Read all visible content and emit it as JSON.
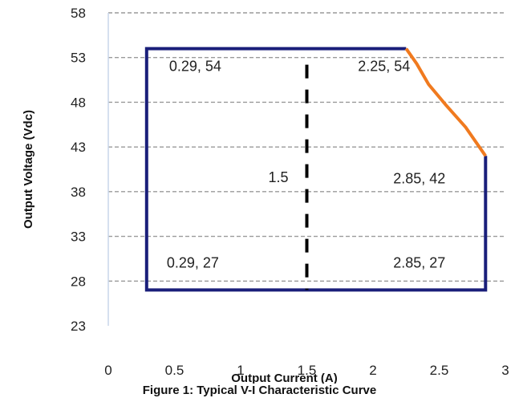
{
  "chart_data": {
    "type": "line",
    "xlabel": "Output Current (A)",
    "ylabel": "Output Voltage (Vdc)",
    "xlim": [
      0,
      3
    ],
    "ylim": [
      23,
      58
    ],
    "x_ticks": [
      "0",
      "0.5",
      "1",
      "1.5",
      "2",
      "2.5",
      "3"
    ],
    "y_ticks": [
      "23",
      "28",
      "33",
      "38",
      "43",
      "48",
      "53",
      "58"
    ],
    "grid": "horizontal-dashed",
    "series": [
      {
        "points": [
          [
            2.25,
            54
          ],
          [
            0.29,
            54
          ],
          [
            0.29,
            27
          ],
          [
            2.85,
            27
          ],
          [
            2.85,
            42
          ]
        ],
        "color": "#1a1f7a"
      },
      {
        "points": [
          [
            2.25,
            54
          ],
          [
            2.33,
            52.3
          ],
          [
            2.42,
            50
          ],
          [
            2.55,
            47.7
          ],
          [
            2.7,
            45.2
          ],
          [
            2.85,
            42
          ]
        ],
        "color": "#f07a1f"
      }
    ],
    "vline": {
      "x": 1.5,
      "label": "1.5"
    },
    "annotations": [
      {
        "text": "0.29, 54",
        "x": 0.29,
        "y": 54
      },
      {
        "text": "2.25, 54",
        "x": 2.25,
        "y": 54
      },
      {
        "text": "2.85, 42",
        "x": 2.85,
        "y": 42
      },
      {
        "text": "0.29, 27",
        "x": 0.29,
        "y": 27
      },
      {
        "text": "2.85, 27",
        "x": 2.85,
        "y": 27
      }
    ]
  },
  "caption": "Figure 1: Typical V-I Characteristic Curve"
}
